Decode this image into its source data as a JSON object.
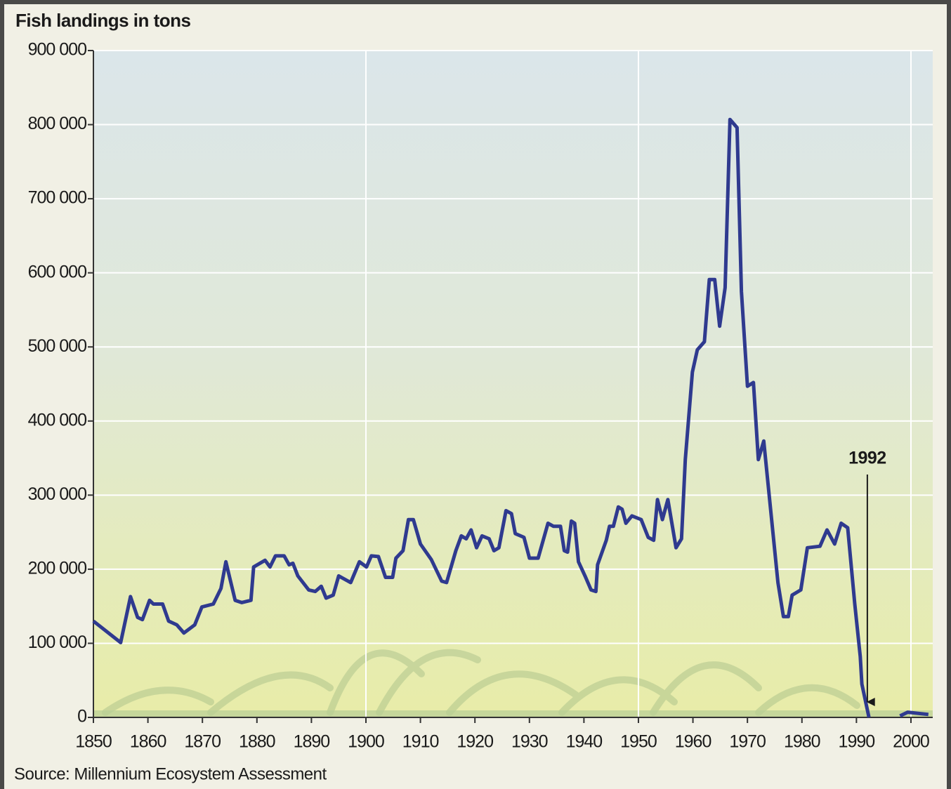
{
  "chart_data": {
    "type": "line",
    "title": "Fish landings in tons",
    "source": "Source: Millennium Ecosystem Assessment",
    "x": [
      1850,
      1855,
      1856.8,
      1858.1,
      1859,
      1860.3,
      1861,
      1862.7,
      1863.8,
      1865.3,
      1866.6,
      1868.6,
      1869.9,
      1872,
      1873.4,
      1874.3,
      1876,
      1877.2,
      1878.9,
      1879.4,
      1881.5,
      1882.4,
      1883.4,
      1885,
      1885.9,
      1886.6,
      1887.5,
      1889.5,
      1890.7,
      1891.8,
      1892.7,
      1894,
      1895,
      1897.2,
      1898.8,
      1900.1,
      1901,
      1902.3,
      1903.6,
      1904.9,
      1905.5,
      1906.8,
      1907.8,
      1908.7,
      1910,
      1912,
      1913.9,
      1914.8,
      1916.5,
      1917.5,
      1918.4,
      1919.3,
      1920.3,
      1921.3,
      1922.6,
      1923.5,
      1924.4,
      1925.7,
      1926.7,
      1927.4,
      1929,
      1930,
      1931.6,
      1933.4,
      1934.4,
      1935.7,
      1936.4,
      1937,
      1937.7,
      1938.3,
      1939,
      1940.2,
      1941.3,
      1942.2,
      1942.5,
      1944.1,
      1944.7,
      1945.4,
      1946.3,
      1947,
      1947.7,
      1948.8,
      1950.5,
      1951.8,
      1952.8,
      1953.5,
      1954.4,
      1955.4,
      1956.9,
      1957.9,
      1958.6,
      1959.9,
      1960.8,
      1962.1,
      1963,
      1964,
      1964.9,
      1965.9,
      1966.8,
      1968.1,
      1968.9,
      1970,
      1971.1,
      1972,
      1973,
      1975.6,
      1976.6,
      1977.5,
      1978.2,
      1979.8,
      1981,
      1983.3,
      1984.6,
      1986,
      1987.2,
      1988.4,
      1989.7,
      1990.7,
      1991,
      1992.3,
      1995,
      1998,
      1999.4,
      2003.2
    ],
    "values": [
      130000,
      101000,
      163000,
      135000,
      132000,
      158000,
      153000,
      153000,
      130000,
      125000,
      114000,
      125000,
      149000,
      153000,
      174000,
      210000,
      158000,
      155000,
      158000,
      203000,
      212000,
      203000,
      218000,
      218000,
      206000,
      208000,
      191000,
      172000,
      170000,
      177000,
      161000,
      165000,
      191000,
      182000,
      210000,
      203000,
      218000,
      217000,
      189000,
      189000,
      215000,
      225000,
      267000,
      267000,
      234000,
      213000,
      184000,
      182000,
      225000,
      245000,
      241000,
      253000,
      229000,
      245000,
      241000,
      225000,
      229000,
      279000,
      275000,
      248000,
      243000,
      215000,
      215000,
      262000,
      258000,
      258000,
      225000,
      223000,
      265000,
      262000,
      210000,
      191000,
      172000,
      170000,
      206000,
      239000,
      258000,
      258000,
      284000,
      281000,
      262000,
      272000,
      267000,
      243000,
      239000,
      294000,
      267000,
      294000,
      229000,
      241000,
      348000,
      466000,
      496000,
      507000,
      591000,
      591000,
      528000,
      580000,
      807000,
      796000,
      575000,
      447000,
      452000,
      348000,
      373000,
      182000,
      136000,
      136000,
      165000,
      172000,
      229000,
      231000,
      253000,
      234000,
      262000,
      256000,
      153000,
      82000,
      45000,
      0,
      null,
      2000,
      7000,
      4000
    ],
    "color": "#2f3a8f",
    "xlim": [
      1850,
      2004
    ],
    "ylim": [
      0,
      900000
    ],
    "xticks": [
      1850,
      1860,
      1870,
      1880,
      1890,
      1900,
      1910,
      1920,
      1930,
      1940,
      1950,
      1960,
      1970,
      1980,
      1990,
      2000
    ],
    "yticks": [
      0,
      {
        "value": 100000,
        "label": "100 000"
      },
      {
        "value": 200000,
        "label": "200 000"
      },
      {
        "value": 300000,
        "label": "300 000"
      },
      {
        "value": 400000,
        "label": "400 000"
      },
      {
        "value": 500000,
        "label": "500 000"
      },
      {
        "value": 600000,
        "label": "600 000"
      },
      {
        "value": 700000,
        "label": "700 000"
      },
      {
        "value": 800000,
        "label": "800 000"
      },
      {
        "value": 900000,
        "label": "900 000"
      }
    ],
    "grid": true,
    "annotations": [
      {
        "label": "1992",
        "x": 1992
      }
    ]
  }
}
